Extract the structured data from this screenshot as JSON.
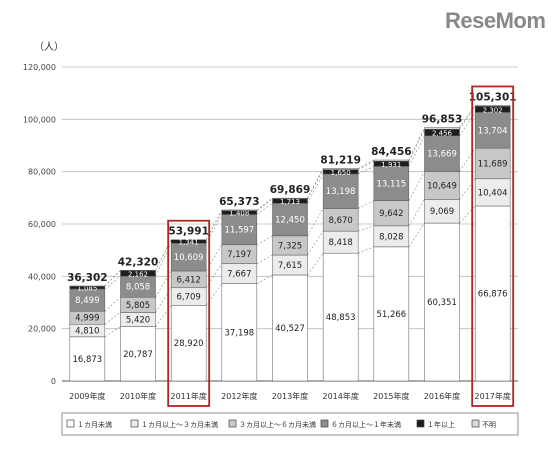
{
  "brand": {
    "text": "ReseMom"
  },
  "chart_data": {
    "type": "stacked-bar",
    "title": "",
    "xlabel": "",
    "ylabel": "（人）",
    "ylim": [
      0,
      120000
    ],
    "yticks": [
      "0",
      "20,000",
      "40,000",
      "60,000",
      "80,000",
      "100,000",
      "120,000"
    ],
    "grid": true,
    "legend_position": "bottom",
    "categories": [
      "2009年度",
      "2010年度",
      "2011年度",
      "2012年度",
      "2013年度",
      "2014年度",
      "2015年度",
      "2016年度",
      "2017年度"
    ],
    "highlighted": [
      "2011年度",
      "2017年度"
    ],
    "totals": [
      36302,
      42320,
      53991,
      65373,
      69869,
      81219,
      84456,
      96853,
      105301
    ],
    "total_labels": [
      "36,302",
      "42,320",
      "53,991",
      "65,373",
      "69,869",
      "81,219",
      "84,456",
      "96,853",
      "105,301"
    ],
    "series": [
      {
        "name": "１カ月未満",
        "color": "#ffffff",
        "values": [
          16873,
          20787,
          28920,
          37198,
          40527,
          48853,
          51266,
          60351,
          66876
        ],
        "labels": [
          "16,873",
          "20,787",
          "28,920",
          "37,198",
          "40,527",
          "48,853",
          "51,266",
          "60,351",
          "66,876"
        ]
      },
      {
        "name": "１カ月以上～３カ月未満",
        "color": "#ececec",
        "values": [
          4810,
          5420,
          6709,
          7667,
          7615,
          8418,
          8028,
          9069,
          10404
        ],
        "labels": [
          "4,810",
          "5,420",
          "6,709",
          "7,667",
          "7,615",
          "8,418",
          "8,028",
          "9,069",
          "10,404"
        ]
      },
      {
        "name": "３カ月以上～６カ月未満",
        "color": "#c8c8c8",
        "values": [
          4999,
          5805,
          6412,
          7197,
          7325,
          8670,
          9642,
          10649,
          11689
        ],
        "labels": [
          "4,999",
          "5,805",
          "6,412",
          "7,197",
          "7,325",
          "8,670",
          "9,642",
          "10,649",
          "11,689"
        ]
      },
      {
        "name": "６カ月以上～１年未満",
        "color": "#8c8c8c",
        "values": [
          8499,
          8058,
          10609,
          11597,
          12450,
          13198,
          13115,
          13669,
          13704
        ],
        "labels": [
          "8,499",
          "8,058",
          "10,609",
          "11,597",
          "12,450",
          "13,198",
          "13,115",
          "13,669",
          "13,704"
        ]
      },
      {
        "name": "１年以上",
        "color": "#1e1e1e",
        "values": [
          1085,
          2162,
          1341,
          1408,
          1713,
          1650,
          1931,
          2456,
          2302
        ],
        "labels": [
          "1,085",
          "2,162",
          "1,341",
          "1,408",
          "1,713",
          "1,650",
          "1,931",
          "2,456",
          "2,302"
        ]
      },
      {
        "name": "不明",
        "color": "#d9d9d9",
        "values": [
          36,
          88,
          0,
          306,
          239,
          430,
          474,
          659,
          326
        ],
        "labels": []
      }
    ]
  }
}
